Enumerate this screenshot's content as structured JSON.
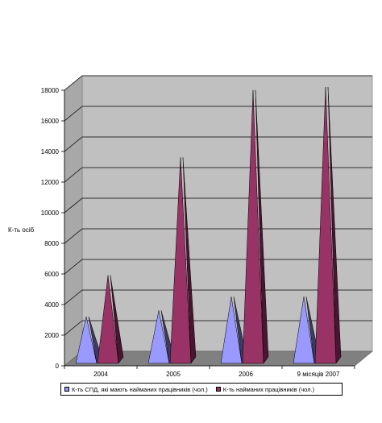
{
  "chart_data": {
    "type": "bar",
    "shape": "3d-cone",
    "categories": [
      "2004",
      "2005",
      "2006",
      "9 місяців 2007"
    ],
    "series": [
      {
        "name": "К-ть СПД, які мають найманих працівників (чол.)",
        "values": [
          3000,
          3400,
          4300,
          4300
        ],
        "color": "#9999FF"
      },
      {
        "name": "К-ть найманих працівників (чол.)",
        "values": [
          5700,
          13400,
          17800,
          18000
        ],
        "color": "#993366"
      }
    ],
    "title": "",
    "xlabel": "",
    "ylabel": "К-ть осіб",
    "ylim": [
      0,
      18000
    ],
    "yticks": [
      "0",
      "2000",
      "4000",
      "6000",
      "8000",
      "10000",
      "12000",
      "14000",
      "16000",
      "18000"
    ],
    "grid": true,
    "legend_position": "bottom",
    "plot_background": "#C0C0C0"
  }
}
